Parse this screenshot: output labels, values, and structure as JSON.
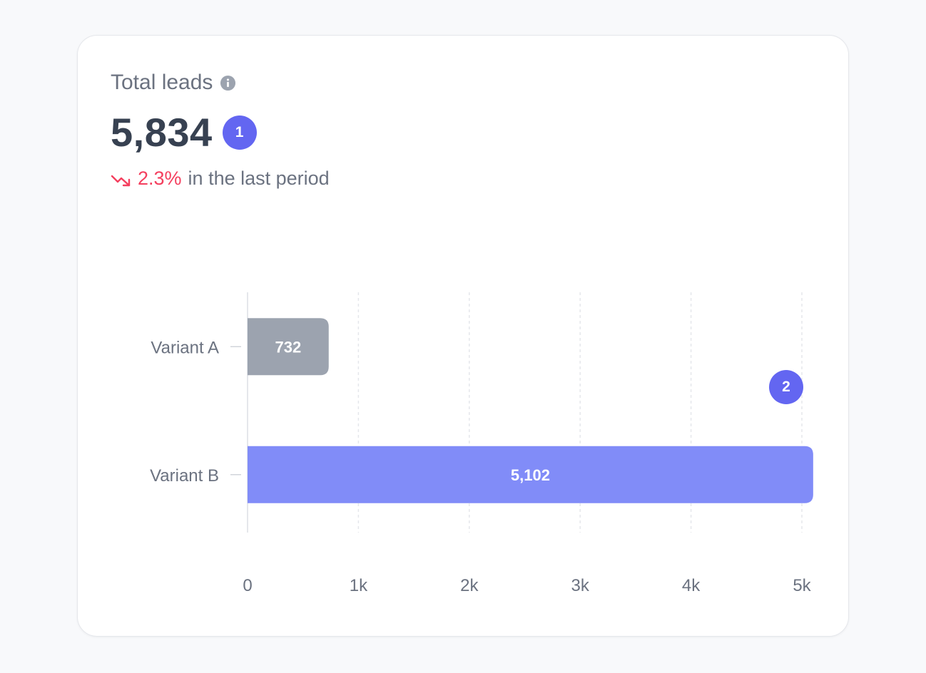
{
  "card": {
    "title": "Total leads",
    "value": "5,834",
    "badge_1": "1",
    "change_percent": "2.3%",
    "change_text": "in the last period",
    "badge_2": "2"
  },
  "colors": {
    "accent": "#6366f1",
    "negative": "#f43f5e",
    "variant_a": "#9ca3af",
    "variant_b": "#818cf8"
  },
  "icons": {
    "info": "info-circle-icon",
    "trend": "trending-down-icon"
  },
  "chart_data": {
    "type": "bar",
    "orientation": "horizontal",
    "categories": [
      "Variant A",
      "Variant B"
    ],
    "values": [
      732,
      5102
    ],
    "value_labels": [
      "732",
      "5,102"
    ],
    "xlim": [
      0,
      5000
    ],
    "xticks": [
      0,
      1000,
      2000,
      3000,
      4000,
      5000
    ],
    "xtick_labels": [
      "0",
      "1k",
      "2k",
      "3k",
      "4k",
      "5k"
    ],
    "grid": "vertical dashed"
  }
}
